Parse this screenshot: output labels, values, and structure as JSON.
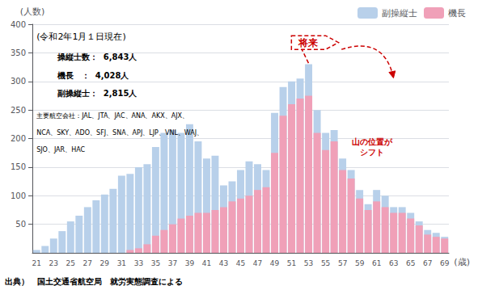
{
  "chart_data": {
    "type": "bar",
    "categories": [
      "21",
      null,
      "23",
      null,
      "25",
      null,
      "27",
      null,
      "29",
      null,
      "31",
      null,
      "33",
      null,
      "35",
      null,
      "37",
      null,
      "39",
      null,
      "41",
      null,
      "43",
      null,
      "45",
      null,
      "47",
      null,
      "49",
      null,
      "51",
      null,
      "53",
      null,
      "55",
      null,
      "57",
      null,
      "59",
      null,
      "61",
      null,
      "63",
      null,
      "65",
      null,
      "67",
      null,
      "69"
    ],
    "series": [
      {
        "name": "副操縦士",
        "color": "#b8d0ea",
        "values": [
          5,
          12,
          25,
          38,
          55,
          65,
          80,
          92,
          102,
          112,
          135,
          138,
          150,
          155,
          185,
          210,
          215,
          210,
          225,
          195,
          165,
          170,
          118,
          125,
          145,
          160,
          155,
          145,
          245,
          290,
          300,
          305,
          330,
          250,
          210,
          215,
          165,
          145,
          110,
          85,
          110,
          100,
          80,
          80,
          70,
          55,
          40,
          35,
          28
        ]
      },
      {
        "name": "機長",
        "color": "#f0a0b8",
        "values": [
          0,
          0,
          0,
          0,
          0,
          0,
          0,
          0,
          0,
          0,
          0,
          5,
          8,
          15,
          30,
          40,
          50,
          60,
          65,
          70,
          70,
          75,
          80,
          90,
          95,
          100,
          110,
          115,
          175,
          240,
          260,
          270,
          275,
          210,
          180,
          195,
          145,
          130,
          95,
          75,
          90,
          80,
          70,
          70,
          60,
          48,
          32,
          28,
          25
        ]
      }
    ],
    "ylim": [
      0,
      400
    ],
    "yticks": [
      50,
      100,
      150,
      200,
      250,
      300,
      350,
      400
    ],
    "grid": true,
    "legend": "top-right",
    "ylabel": "(人数)",
    "xlabel": "(歳)",
    "annotations": [
      {
        "text": "(令和2年1月１日現在)"
      },
      {
        "text": "操縦士数：  6,843人"
      },
      {
        "text": "機長　：  4,028人"
      },
      {
        "text": "副操縦士：  2,815人"
      },
      {
        "text": "主要航空会社：JAL、JTA、JAC、ANA、AKX、AJX、"
      },
      {
        "text": "NCA、SKY、ADO、SFJ、SNA、APJ、LJP、VNL、WAJ、"
      },
      {
        "text": "SJO、JAR、HAC"
      },
      {
        "text": "将来",
        "color": "#cc0000"
      },
      {
        "text": "山の位置が\nシフト",
        "color": "#cc0000"
      },
      {
        "text": "出典）　国土交通省航空局　就労実態調査による"
      }
    ]
  }
}
